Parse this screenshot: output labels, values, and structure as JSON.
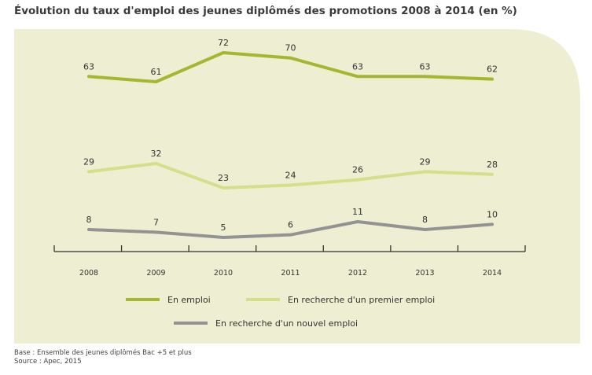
{
  "title": "Évolution du taux d'emploi des jeunes diplômés des promotions 2008 à 2014 (en %)",
  "footnotes": {
    "base": "Base : Ensemble des jeunes diplômés Bac +5 et plus",
    "source": "Source : Apec, 2015"
  },
  "colors": {
    "panel": "#eeeed2",
    "en_emploi": "#a3b830",
    "premier_emploi": "#d4df8a",
    "nouvel_emploi": "#939393",
    "axis": "#333333",
    "label": "#333333"
  },
  "chart_data": {
    "type": "line",
    "categories": [
      "2008",
      "2009",
      "2010",
      "2011",
      "2012",
      "2013",
      "2014"
    ],
    "series": [
      {
        "name": "En emploi",
        "values": [
          63,
          61,
          72,
          70,
          63,
          63,
          62
        ]
      },
      {
        "name": "En recherche d'un premier emploi",
        "values": [
          29,
          32,
          23,
          24,
          26,
          29,
          28
        ]
      },
      {
        "name": "En recherche d'un nouvel emploi",
        "values": [
          8,
          7,
          5,
          6,
          11,
          8,
          10
        ]
      }
    ],
    "title": "Évolution du taux d'emploi des jeunes diplômés des promotions 2008 à 2014 (en %)",
    "xlabel": "",
    "ylabel": "",
    "data_labels": true,
    "grid": false,
    "legend": "bottom"
  }
}
